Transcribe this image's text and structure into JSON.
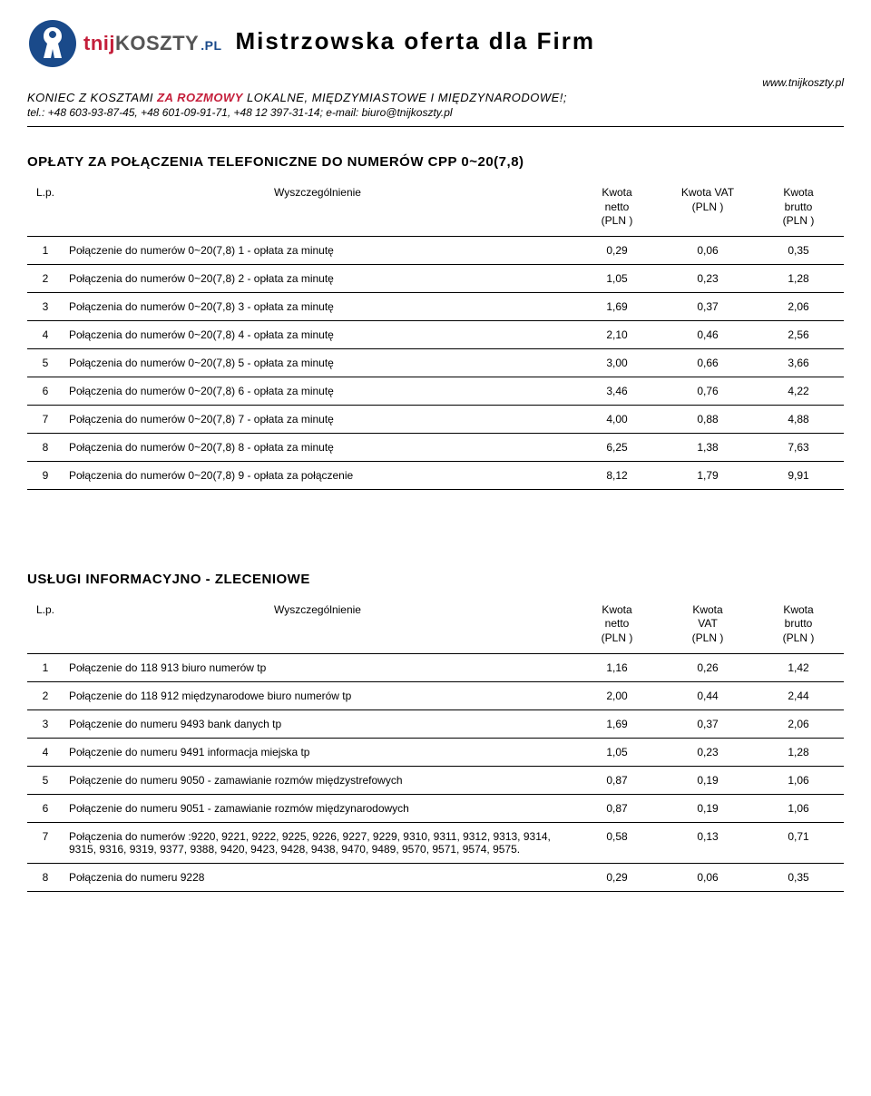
{
  "header": {
    "brand_tnij": "tnij",
    "brand_koszty": "KOSZTY",
    "brand_pl": ".PL",
    "main_title": "Mistrzowska oferta dla Firm",
    "site_url": "www.tnijkoszty.pl",
    "subtitle_prefix": "KONIEC Z KOSZTAMI ",
    "subtitle_red": "ZA ROZMOWY",
    "subtitle_suffix": " LOKALNE, MIĘDZYMIASTOWE I MIĘDZYNARODOWE!;",
    "contact": "tel.: +48 603-93-87-45,   +48 601-09-91-71,   +48 12 397-31-14;    e-mail: biuro@tnijkoszty.pl"
  },
  "columns": {
    "lp": "L.p.",
    "desc": "Wyszczególnienie",
    "netto": "Kwota\nnetto\n(PLN )",
    "vat": "Kwota VAT\n(PLN )",
    "vat2": "Kwota\nVAT\n(PLN )",
    "brutto": "Kwota\nbrutto\n(PLN )"
  },
  "table1": {
    "title": "OPŁATY ZA POŁĄCZENIA TELEFONICZNE DO NUMERÓW CPP 0~20(7,8)",
    "rows": [
      {
        "lp": "1",
        "desc": "Połączenie do numerów 0~20(7,8) 1 - opłata za minutę",
        "n": "0,29",
        "v": "0,06",
        "b": "0,35"
      },
      {
        "lp": "2",
        "desc": "Połączenia do numerów 0~20(7,8) 2 - opłata za minutę",
        "n": "1,05",
        "v": "0,23",
        "b": "1,28"
      },
      {
        "lp": "3",
        "desc": "Połączenia do numerów 0~20(7,8) 3 - opłata za minutę",
        "n": "1,69",
        "v": "0,37",
        "b": "2,06"
      },
      {
        "lp": "4",
        "desc": "Połączenia do numerów 0~20(7,8) 4 - opłata za minutę",
        "n": "2,10",
        "v": "0,46",
        "b": "2,56"
      },
      {
        "lp": "5",
        "desc": "Połączenia do numerów 0~20(7,8) 5 - opłata za minutę",
        "n": "3,00",
        "v": "0,66",
        "b": "3,66"
      },
      {
        "lp": "6",
        "desc": "Połączenia do numerów 0~20(7,8) 6 - opłata za minutę",
        "n": "3,46",
        "v": "0,76",
        "b": "4,22"
      },
      {
        "lp": "7",
        "desc": "Połączenia do numerów 0~20(7,8) 7 - opłata za minutę",
        "n": "4,00",
        "v": "0,88",
        "b": "4,88"
      },
      {
        "lp": "8",
        "desc": "Połączenia do numerów 0~20(7,8) 8 - opłata za minutę",
        "n": "6,25",
        "v": "1,38",
        "b": "7,63"
      },
      {
        "lp": "9",
        "desc": "Połączenia do numerów 0~20(7,8) 9 - opłata za połączenie",
        "n": "8,12",
        "v": "1,79",
        "b": "9,91"
      }
    ]
  },
  "table2": {
    "title": "USŁUGI INFORMACYJNO - ZLECENIOWE",
    "rows": [
      {
        "lp": "1",
        "desc": "Połączenie do 118 913 biuro numerów tp",
        "n": "1,16",
        "v": "0,26",
        "b": "1,42"
      },
      {
        "lp": "2",
        "desc": "Połączenie do 118 912 międzynarodowe biuro numerów tp",
        "n": "2,00",
        "v": "0,44",
        "b": "2,44"
      },
      {
        "lp": "3",
        "desc": "Połączenie do numeru 9493 bank danych tp",
        "n": "1,69",
        "v": "0,37",
        "b": "2,06"
      },
      {
        "lp": "4",
        "desc": "Połączenie do numeru 9491 informacja miejska tp",
        "n": "1,05",
        "v": "0,23",
        "b": "1,28"
      },
      {
        "lp": "5",
        "desc": "Połączenie do numeru 9050 - zamawianie rozmów międzystrefowych",
        "n": "0,87",
        "v": "0,19",
        "b": "1,06"
      },
      {
        "lp": "6",
        "desc": "Połączenie do numeru 9051 - zamawianie rozmów międzynarodowych",
        "n": "0,87",
        "v": "0,19",
        "b": "1,06"
      },
      {
        "lp": "7",
        "desc": "Połączenia do numerów :9220, 9221, 9222, 9225, 9226, 9227, 9229, 9310, 9311, 9312, 9313, 9314, 9315, 9316, 9319, 9377, 9388, 9420, 9423, 9428, 9438, 9470, 9489, 9570, 9571, 9574, 9575.",
        "n": "0,58",
        "v": "0,13",
        "b": "0,71"
      },
      {
        "lp": "8",
        "desc": "Połączenia do numeru 9228",
        "n": "0,29",
        "v": "0,06",
        "b": "0,35"
      }
    ]
  },
  "colors": {
    "red": "#c41e3a",
    "blue": "#1a4a8a",
    "text": "#000000",
    "bg": "#ffffff"
  }
}
